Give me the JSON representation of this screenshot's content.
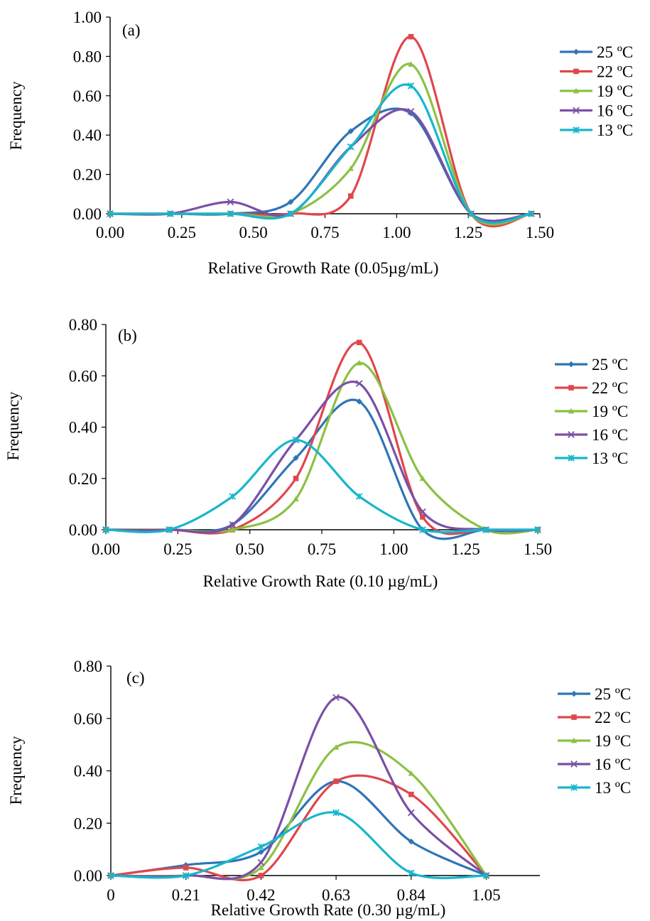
{
  "colors": {
    "25 ºC": "#2e75b6",
    "22 ºC": "#e0474c",
    "19 ºC": "#8cc043",
    "16 ºC": "#7b4fa5",
    "13 ºC": "#17b6cc"
  },
  "markers": {
    "25 ºC": "diamond",
    "22 ºC": "square",
    "19 ºC": "triangle",
    "16 ºC": "x",
    "13 ºC": "star"
  },
  "chart_data": [
    {
      "type": "line",
      "panel_label": "(a)",
      "xlabel": "Relative Growth Rate (0.05µg/mL)",
      "ylabel": "Frequency",
      "xlim": [
        0,
        1.5
      ],
      "ylim": [
        0,
        1.0
      ],
      "xticks": [
        "0.00",
        "0.25",
        "0.50",
        "0.75",
        "1.00",
        "1.25",
        "1.50"
      ],
      "yticks": [
        "0.00",
        "0.20",
        "0.40",
        "0.60",
        "0.80",
        "1.00"
      ],
      "grid": false,
      "legend": "right",
      "x": [
        0.0,
        0.21,
        0.42,
        0.63,
        0.84,
        1.05,
        1.26,
        1.47
      ],
      "series": [
        {
          "name": "25 ºC",
          "values": [
            0.0,
            0.0,
            0.0,
            0.06,
            0.42,
            0.51,
            0.0,
            0.0
          ]
        },
        {
          "name": "22 ºC",
          "values": [
            0.0,
            0.0,
            0.0,
            0.0,
            0.09,
            0.9,
            0.0,
            0.0
          ]
        },
        {
          "name": "19 ºC",
          "values": [
            0.0,
            0.0,
            0.0,
            0.0,
            0.23,
            0.76,
            0.0,
            0.0
          ]
        },
        {
          "name": "16 ºC",
          "values": [
            0.0,
            0.0,
            0.06,
            0.0,
            0.34,
            0.52,
            0.0,
            0.0
          ]
        },
        {
          "name": "13 ºC",
          "values": [
            0.0,
            0.0,
            0.0,
            0.0,
            0.34,
            0.65,
            0.0,
            0.0
          ]
        }
      ]
    },
    {
      "type": "line",
      "panel_label": "(b)",
      "xlabel": "Relative Growth Rate (0.10 µg/mL)",
      "ylabel": "Frequency",
      "xlim": [
        0,
        1.5
      ],
      "ylim": [
        0,
        0.8
      ],
      "xticks": [
        "0.00",
        "0.25",
        "0.50",
        "0.75",
        "1.00",
        "1.25",
        "1.50"
      ],
      "yticks": [
        "0.00",
        "0.20",
        "0.40",
        "0.60",
        "0.80"
      ],
      "grid": false,
      "legend": "right",
      "x": [
        0.0,
        0.22,
        0.44,
        0.66,
        0.88,
        1.1,
        1.32,
        1.5
      ],
      "series": [
        {
          "name": "25 ºC",
          "values": [
            0.0,
            0.0,
            0.02,
            0.28,
            0.5,
            0.0,
            0.0,
            0.0
          ]
        },
        {
          "name": "22 ºC",
          "values": [
            0.0,
            0.0,
            0.0,
            0.2,
            0.73,
            0.05,
            0.0,
            0.0
          ]
        },
        {
          "name": "19 ºC",
          "values": [
            0.0,
            0.0,
            0.0,
            0.12,
            0.65,
            0.2,
            0.0,
            0.0
          ]
        },
        {
          "name": "16 ºC",
          "values": [
            0.0,
            0.0,
            0.02,
            0.35,
            0.57,
            0.07,
            0.0,
            0.0
          ]
        },
        {
          "name": "13 ºC",
          "values": [
            0.0,
            0.0,
            0.13,
            0.35,
            0.13,
            0.0,
            0.0,
            0.0
          ]
        }
      ]
    },
    {
      "type": "line",
      "panel_label": "(c)",
      "xlabel": "Relative Growth Rate (0.30 µg/mL)",
      "ylabel": "Frequency",
      "xlim": [
        0,
        1.2
      ],
      "ylim": [
        0,
        0.8
      ],
      "xticks": [
        "0",
        "0.21",
        "0.42",
        "0.63",
        "0.84",
        "1.05"
      ],
      "yticks": [
        "0.00",
        "0.20",
        "0.40",
        "0.60",
        "0.80"
      ],
      "grid": false,
      "legend": "right",
      "x": [
        0.0,
        0.21,
        0.42,
        0.63,
        0.84,
        1.05
      ],
      "series": [
        {
          "name": "25 ºC",
          "values": [
            0.0,
            0.04,
            0.09,
            0.36,
            0.13,
            0.0
          ]
        },
        {
          "name": "22 ºC",
          "values": [
            0.0,
            0.03,
            0.0,
            0.36,
            0.31,
            0.0
          ]
        },
        {
          "name": "19 ºC",
          "values": [
            0.0,
            0.0,
            0.03,
            0.49,
            0.39,
            0.0
          ]
        },
        {
          "name": "16 ºC",
          "values": [
            0.0,
            0.0,
            0.05,
            0.68,
            0.24,
            0.0
          ]
        },
        {
          "name": "13 ºC",
          "values": [
            0.0,
            0.0,
            0.11,
            0.24,
            0.01,
            0.0
          ]
        }
      ]
    }
  ]
}
